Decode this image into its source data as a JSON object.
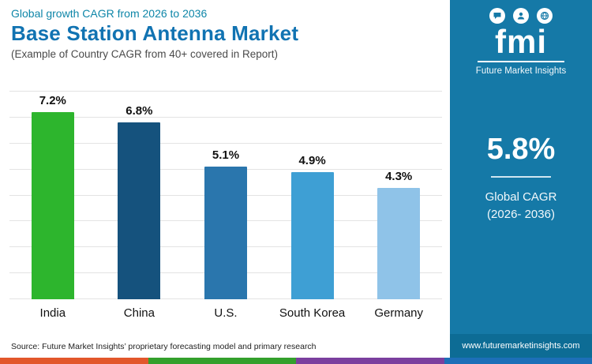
{
  "header": {
    "kicker": "Global growth CAGR from 2026 to 2036",
    "title": "Base Station Antenna Market",
    "subtitle": "(Example of Country CAGR from 40+ covered in Report)"
  },
  "chart_data": {
    "type": "bar",
    "categories": [
      "India",
      "China",
      "U.S.",
      "South Korea",
      "Germany"
    ],
    "values": [
      7.2,
      6.8,
      5.1,
      4.9,
      4.3
    ],
    "value_labels": [
      "7.2%",
      "6.8%",
      "5.1%",
      "4.9%",
      "4.3%"
    ],
    "bar_colors": [
      "#2db52d",
      "#15527d",
      "#2a76ad",
      "#3e9fd4",
      "#8fc3e8"
    ],
    "ylim": [
      0,
      8
    ],
    "grid": true,
    "gridline_count": 8,
    "legend": "none",
    "title": "Base Station Antenna Market",
    "xlabel": "",
    "ylabel": ""
  },
  "sidebar": {
    "logo_text": "fmi",
    "logo_caption": "Future Market Insights",
    "stat_value": "5.8%",
    "stat_label_line1": "Global CAGR",
    "stat_label_line2": "(2026- 2036)",
    "website": "www.futuremarketinsights.com",
    "bg_color": "#1579a7"
  },
  "footer": {
    "source": "Source: Future Market Insights’ proprietary forecasting model and primary research"
  },
  "stripe_colors": [
    "#e2572b",
    "#33a02c",
    "#7b3f9e",
    "#1d6fb8"
  ]
}
